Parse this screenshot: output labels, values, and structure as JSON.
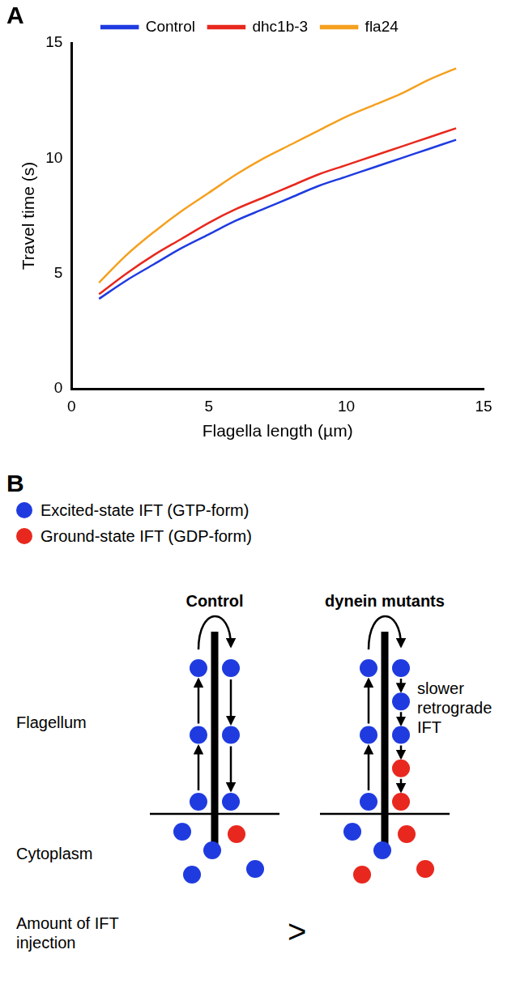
{
  "panel_labels": [
    "A",
    "B"
  ],
  "chart_data": {
    "type": "line",
    "x_label": "Flagella length (µm)",
    "y_label": "Travel time (s)",
    "x": [
      1,
      2,
      3,
      4,
      5,
      6,
      7,
      8,
      9,
      10,
      11,
      12,
      13,
      14
    ],
    "series": [
      {
        "name": "Control",
        "color": "#1f3be0",
        "values": [
          3.9,
          4.7,
          5.4,
          6.1,
          6.7,
          7.3,
          7.8,
          8.3,
          8.8,
          9.2,
          9.6,
          10.0,
          10.4,
          10.8
        ]
      },
      {
        "name": "dhc1b-3",
        "color": "#e8281e",
        "values": [
          4.1,
          5.0,
          5.8,
          6.5,
          7.2,
          7.8,
          8.3,
          8.8,
          9.3,
          9.7,
          10.1,
          10.5,
          10.9,
          11.3
        ]
      },
      {
        "name": "fla24",
        "color": "#f5a01e",
        "values": [
          4.6,
          5.8,
          6.8,
          7.7,
          8.5,
          9.3,
          10.0,
          10.6,
          11.2,
          11.8,
          12.3,
          12.8,
          13.4,
          13.9
        ]
      }
    ],
    "xlim": [
      0,
      15
    ],
    "xticks": [
      0,
      5,
      10,
      15
    ],
    "ylim": [
      0,
      15
    ],
    "yticks": [
      0,
      5,
      10,
      15
    ],
    "grid": false,
    "legend": "top",
    "marker": "none"
  },
  "diagram": {
    "legend": [
      {
        "state": "excited",
        "label": "Excited-state IFT (GTP-form)",
        "color": "#1f3be0"
      },
      {
        "state": "ground",
        "label": "Ground-state IFT (GDP-form)",
        "color": "#e8281e"
      }
    ],
    "row_labels": {
      "flagellum": "Flagellum",
      "cytoplasm": "Cytoplasm",
      "injection": "Amount of IFT injection"
    },
    "columns": [
      {
        "title": "Control",
        "anterograde": [
          "excited",
          "excited",
          "excited"
        ],
        "retrograde": [
          "excited",
          "excited",
          "excited"
        ],
        "cytoplasm": [
          "excited",
          "excited",
          "ground",
          "excited",
          "excited"
        ]
      },
      {
        "title": "dynein mutants",
        "anterograde": [
          "excited",
          "excited",
          "excited"
        ],
        "retrograde": [
          "excited",
          "excited",
          "excited",
          "ground",
          "ground"
        ],
        "retrograde_note": "slower retrograde IFT",
        "cytoplasm": [
          "excited",
          "excited",
          "ground",
          "ground",
          "ground"
        ]
      }
    ],
    "comparison": ">"
  }
}
